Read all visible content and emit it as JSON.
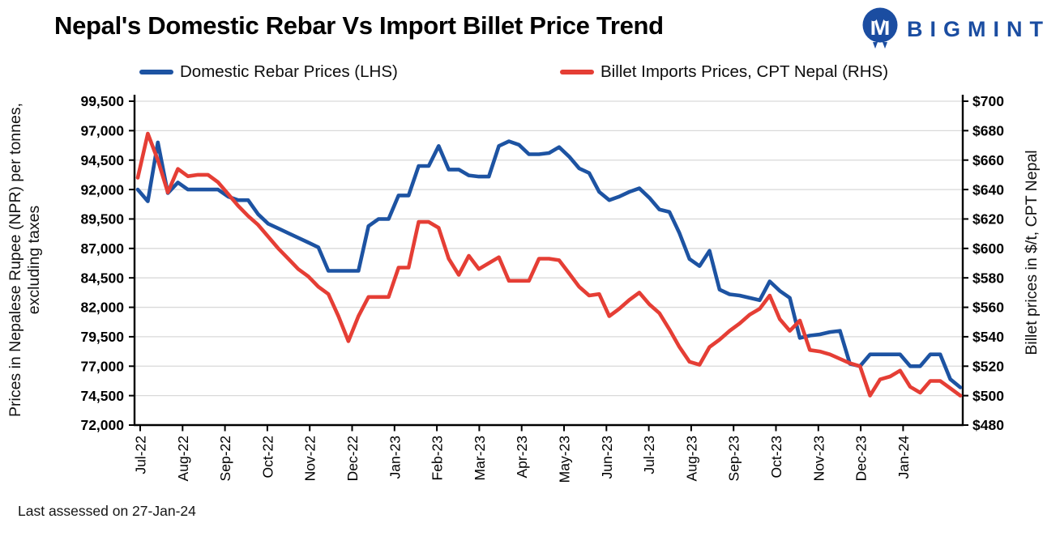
{
  "page": {
    "title": "Nepal's Domestic Rebar Vs Import Billet Price Trend",
    "footer_note": "Last assessed on 27-Jan-24"
  },
  "logo": {
    "brand": "BIGMINT",
    "color": "#1b4da1"
  },
  "legend": [
    {
      "label": "Domestic Rebar Prices (LHS)",
      "color": "#1d53a2"
    },
    {
      "label": "Billet Imports Prices, CPT Nepal (RHS)",
      "color": "#e53e35"
    }
  ],
  "chart_data": {
    "type": "line",
    "title": "Nepal's Domestic Rebar Vs Import Billet Price Trend",
    "grid": true,
    "legend_position": "top",
    "frequency": "weekly",
    "x_axis": {
      "tick_labels": [
        "Jul-22",
        "Aug-22",
        "Sep-22",
        "Oct-22",
        "Nov-22",
        "Dec-22",
        "Jan-23",
        "Feb-23",
        "Mar-23",
        "Apr-23",
        "May-23",
        "Jun-23",
        "Jul-23",
        "Aug-23",
        "Sep-23",
        "Oct-23",
        "Nov-23",
        "Dec-23",
        "Jan-24"
      ]
    },
    "left_axis": {
      "label_line1": "Prices in Nepalese Rupee (NPR) per tonnes,",
      "label_line2": "excluding taxes",
      "min": 72000,
      "max": 99500,
      "step": 2500,
      "tick_labels": [
        "99,500",
        "97,000",
        "94,500",
        "92,000",
        "89,500",
        "87,000",
        "84,500",
        "82,000",
        "79,500",
        "77,000",
        "74,500",
        "72,000"
      ]
    },
    "right_axis": {
      "label": "Billet prices in $/t, CPT Nepal",
      "min": 480,
      "max": 700,
      "step": 20,
      "tick_labels": [
        "$700",
        "$680",
        "$660",
        "$640",
        "$620",
        "$600",
        "$580",
        "$560",
        "$540",
        "$520",
        "$500",
        "$480"
      ]
    },
    "series": [
      {
        "name": "Domestic Rebar Prices (LHS)",
        "axis": "left",
        "color": "#1d53a2",
        "values": [
          92000,
          91000,
          96000,
          91700,
          92600,
          92000,
          92000,
          92000,
          92000,
          91400,
          91100,
          91100,
          89900,
          89100,
          88700,
          88300,
          87900,
          87500,
          87100,
          85100,
          85100,
          85100,
          85100,
          88900,
          89500,
          89500,
          91500,
          91500,
          94000,
          94000,
          95700,
          93700,
          93700,
          93200,
          93100,
          93100,
          95700,
          96100,
          95800,
          95000,
          95000,
          95100,
          95600,
          94800,
          93800,
          93400,
          91800,
          91100,
          91400,
          91800,
          92100,
          91300,
          90300,
          90100,
          88300,
          86100,
          85500,
          86800,
          83500,
          83100,
          83000,
          82800,
          82600,
          84200,
          83400,
          82800,
          79400,
          79600,
          79700,
          79900,
          80000,
          77200,
          77000,
          78000,
          78000,
          78000,
          78000,
          77000,
          77000,
          78000,
          78000,
          75900,
          75200
        ]
      },
      {
        "name": "Billet Imports Prices, CPT Nepal (RHS)",
        "axis": "right",
        "color": "#e53e35",
        "values": [
          648,
          678,
          660,
          638,
          654,
          649,
          650,
          650,
          645,
          637,
          629,
          622,
          616,
          608,
          600,
          593,
          586,
          581,
          574,
          569,
          554,
          537,
          554,
          567,
          567,
          567,
          587,
          587,
          618,
          618,
          614,
          593,
          582,
          595,
          586,
          590,
          594,
          578,
          578,
          578,
          593,
          593,
          592,
          583,
          574,
          568,
          569,
          554,
          559,
          565,
          570,
          562,
          556,
          545,
          533,
          523,
          521,
          533,
          538,
          544,
          549,
          555,
          559,
          568,
          552,
          544,
          551,
          531,
          530,
          528,
          525,
          522,
          520,
          500,
          511,
          513,
          517,
          506,
          502,
          510,
          510,
          505,
          500
        ]
      }
    ]
  }
}
